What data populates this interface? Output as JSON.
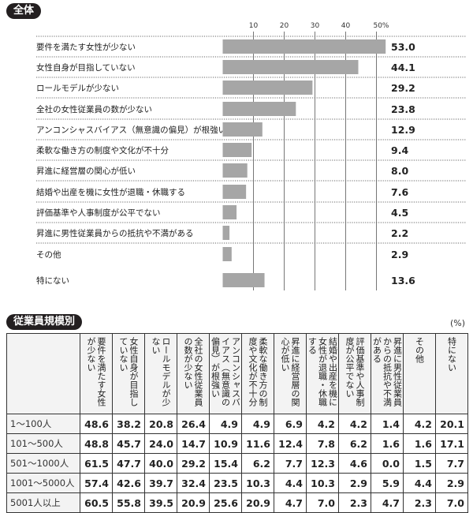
{
  "chart_data": {
    "type": "bar",
    "orientation": "horizontal",
    "title": "全体",
    "categories": [
      "要件を満たす女性が少ない",
      "女性自身が目指していない",
      "ロールモデルが少ない",
      "全社の女性従業員の数が少ない",
      "アンコンシャスバイアス（無意識の偏見）が根強い",
      "柔軟な働き方の制度や文化が不十分",
      "昇進に経営層の関心が低い",
      "結婚や出産を機に女性が退職・休職する",
      "評価基準や人事制度が公平でない",
      "昇進に男性従業員からの抵抗や不満がある",
      "その他",
      "特にない"
    ],
    "values": [
      53.0,
      44.1,
      29.2,
      23.8,
      12.9,
      9.4,
      8.0,
      7.6,
      4.5,
      2.2,
      2.9,
      13.6
    ],
    "value_labels": [
      "53.0",
      "44.1",
      "29.2",
      "23.8",
      "12.9",
      "9.4",
      "8.0",
      "7.6",
      "4.5",
      "2.2",
      "2.9",
      "13.6"
    ],
    "ticks": [
      "10",
      "20",
      "30",
      "40",
      "50%"
    ],
    "xlim": [
      0,
      50
    ],
    "grid": true,
    "bar_color": "#a6a6a6"
  },
  "table": {
    "title": "従業員規模別",
    "unit": "(%)",
    "headers": [
      "要件を満たす女性が少ない",
      "女性自身が目指していない",
      "ロールモデルが少ない",
      "全社の女性従業員の数が少ない",
      "アンコンシャスバイアス（無意識の偏見）が根強い",
      "柔軟な働き方の制度や文化が不十分",
      "昇進に経営層の関心が低い",
      "結婚や出産を機に女性が退職・休職する",
      "評価基準や人事制度が公平でない",
      "昇進に男性従業員からの抵抗や不満がある",
      "その他",
      "特にない"
    ],
    "rows": [
      {
        "label": "1～100人",
        "values": [
          "48.6",
          "38.2",
          "20.8",
          "26.4",
          "4.9",
          "4.9",
          "6.9",
          "4.2",
          "4.2",
          "1.4",
          "4.2",
          "20.1"
        ]
      },
      {
        "label": "101～500人",
        "values": [
          "48.8",
          "45.7",
          "24.0",
          "14.7",
          "10.9",
          "11.6",
          "12.4",
          "7.8",
          "6.2",
          "1.6",
          "1.6",
          "17.1"
        ]
      },
      {
        "label": "501～1000人",
        "values": [
          "61.5",
          "47.7",
          "40.0",
          "29.2",
          "15.4",
          "6.2",
          "7.7",
          "12.3",
          "4.6",
          "0.0",
          "1.5",
          "7.7"
        ]
      },
      {
        "label": "1001～5000人",
        "values": [
          "57.4",
          "42.6",
          "39.7",
          "32.4",
          "23.5",
          "10.3",
          "4.4",
          "10.3",
          "2.9",
          "5.9",
          "4.4",
          "2.9"
        ]
      },
      {
        "label": "5001人以上",
        "values": [
          "60.5",
          "55.8",
          "39.5",
          "20.9",
          "25.6",
          "20.9",
          "4.7",
          "7.0",
          "2.3",
          "4.7",
          "2.3",
          "7.0"
        ]
      }
    ]
  }
}
